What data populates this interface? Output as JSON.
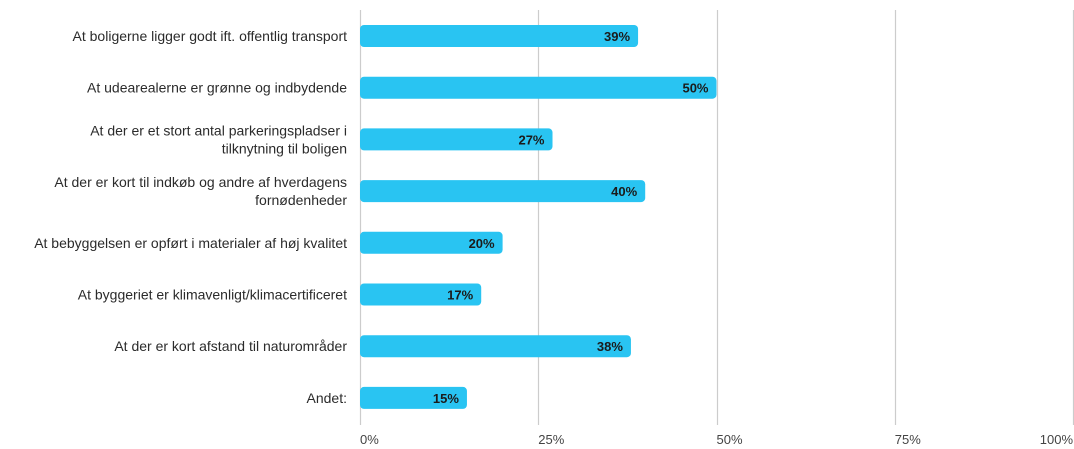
{
  "chart_data": {
    "type": "bar",
    "orientation": "horizontal",
    "categories": [
      [
        "At boligerne ligger godt ift. offentlig transport"
      ],
      [
        "At udearealerne er grønne og indbydende"
      ],
      [
        "At der er et stort antal parkeringspladser i",
        "tilknytning til boligen"
      ],
      [
        "At der er kort til indkøb og andre af hverdagens",
        "fornødenheder"
      ],
      [
        "At bebyggelsen er opført i materialer af høj kvalitet"
      ],
      [
        "At byggeriet er klimavenligt/klimacertificeret"
      ],
      [
        "At der er kort afstand til naturområder"
      ],
      [
        "Andet:"
      ]
    ],
    "values": [
      39,
      50,
      27,
      40,
      20,
      17,
      38,
      15
    ],
    "value_labels": [
      "39%",
      "50%",
      "27%",
      "40%",
      "20%",
      "17%",
      "38%",
      "15%"
    ],
    "x_ticks": [
      0,
      25,
      50,
      75,
      100
    ],
    "x_tick_labels": [
      "0%",
      "25%",
      "50%",
      "75%",
      "100%"
    ],
    "xlim": [
      0,
      100
    ],
    "grid": true,
    "legend": "none",
    "bar_color": "#29c4f2",
    "grid_color": "#cccccc"
  }
}
